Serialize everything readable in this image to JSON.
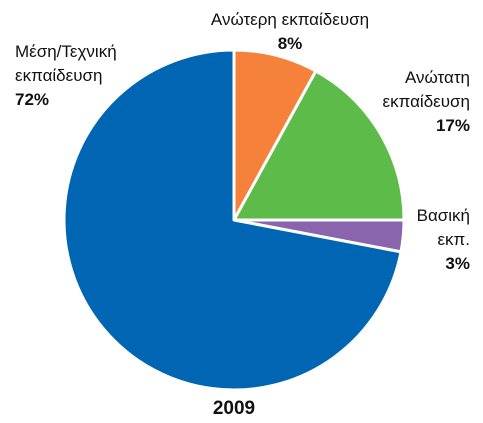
{
  "chart_data": {
    "type": "pie",
    "subtitle": "2009",
    "categories": [
      "Ανώτερη εκπαίδευση",
      "Ανώτατη εκπαίδευση",
      "Βασική εκπ.",
      "Μέση/Τεχνική εκπαίδευση"
    ],
    "values": [
      8,
      17,
      3,
      72
    ],
    "value_labels": [
      "8%",
      "17%",
      "3%",
      "72%"
    ],
    "colors": [
      "#f5813a",
      "#5dbb4a",
      "#8a64ad",
      "#0066b3"
    ]
  }
}
